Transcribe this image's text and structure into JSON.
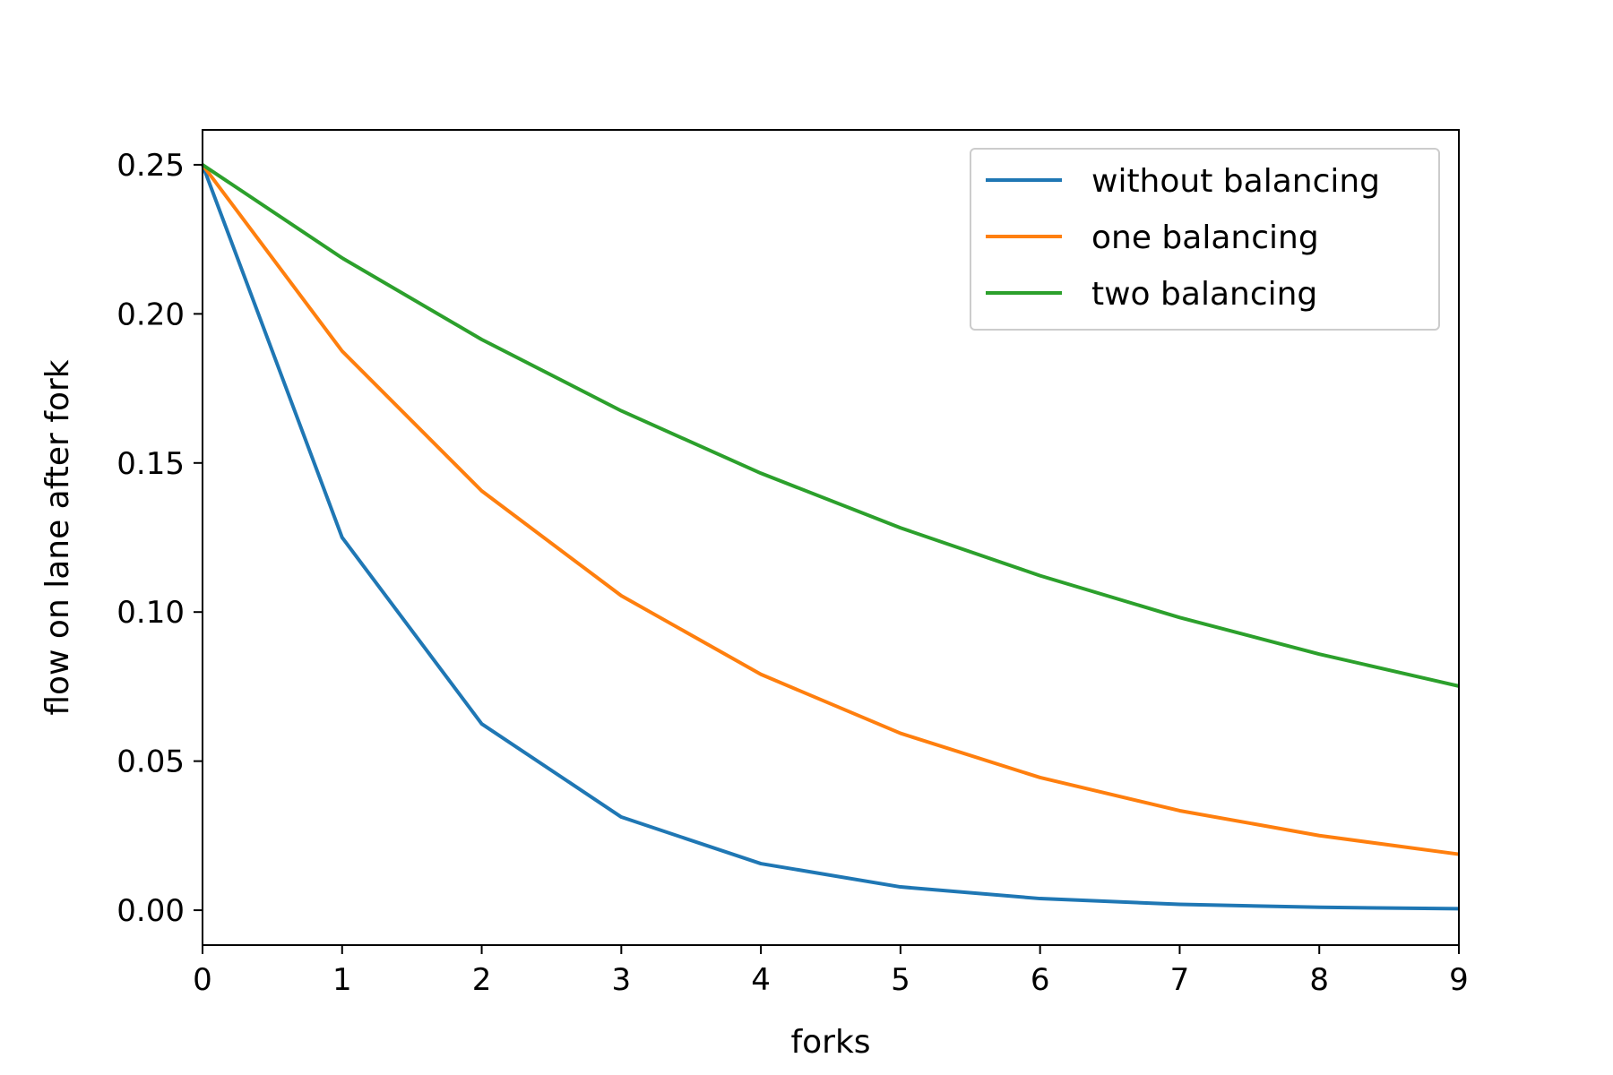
{
  "chart_data": {
    "type": "line",
    "title": "",
    "xlabel": "forks",
    "ylabel": "flow on lane after fork",
    "x": [
      0,
      1,
      2,
      3,
      4,
      5,
      6,
      7,
      8,
      9
    ],
    "xlim": [
      0,
      9
    ],
    "ylim": [
      -0.0117,
      0.2617
    ],
    "xticks": [
      0,
      1,
      2,
      3,
      4,
      5,
      6,
      7,
      8,
      9
    ],
    "yticks": [
      0.0,
      0.05,
      0.1,
      0.15,
      0.2,
      0.25
    ],
    "ytick_labels": [
      "0.00",
      "0.05",
      "0.10",
      "0.15",
      "0.20",
      "0.25"
    ],
    "grid": false,
    "legend_position": "top-right",
    "series": [
      {
        "name": "without balancing",
        "color": "#1f77b4",
        "values": [
          0.25,
          0.125,
          0.0625,
          0.03125,
          0.015625,
          0.0078125,
          0.00390625,
          0.001953125,
          0.0009765625,
          0.00048828125
        ]
      },
      {
        "name": "one balancing",
        "color": "#ff7f0e",
        "values": [
          0.25,
          0.1875,
          0.140625,
          0.10546875,
          0.0791015625,
          0.059326171875,
          0.04449462890625,
          0.0333709716796875,
          0.025028228759765625,
          0.01877117156982422
        ]
      },
      {
        "name": "two balancing",
        "color": "#2ca02c",
        "values": [
          0.25,
          0.21875,
          0.19140625,
          0.16748046875,
          0.1465454101,
          0.1282272339,
          0.1121988297,
          0.0981739759,
          0.0859022289,
          0.0751644503
        ]
      }
    ]
  }
}
